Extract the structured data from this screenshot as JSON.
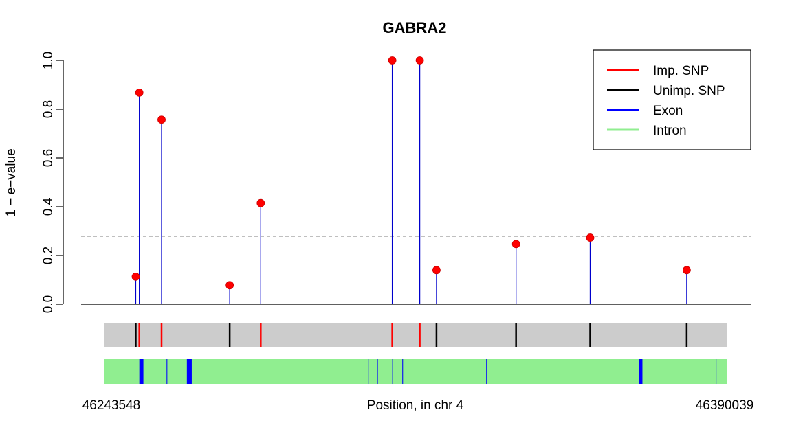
{
  "chart_data": {
    "type": "scatter",
    "title": "GABRA2",
    "ylabel": "1 − e−value",
    "xlabel": "Position, in chr 4",
    "xrange_labels": [
      "46243548",
      "46390039"
    ],
    "ylim": [
      0,
      1
    ],
    "yticks": [
      "0.0",
      "0.2",
      "0.4",
      "0.6",
      "0.8",
      "1.0"
    ],
    "threshold": 0.28,
    "x_start": 46243548,
    "x_end": 46390039,
    "snps": [
      {
        "pos": 46250898,
        "value": 0.113,
        "imputed": false
      },
      {
        "pos": 46251741,
        "value": 0.868,
        "imputed": true
      },
      {
        "pos": 46256971,
        "value": 0.757,
        "imputed": true
      },
      {
        "pos": 46272999,
        "value": 0.078,
        "imputed": false
      },
      {
        "pos": 46280302,
        "value": 0.415,
        "imputed": true
      },
      {
        "pos": 46311232,
        "value": 1.0,
        "imputed": true
      },
      {
        "pos": 46317698,
        "value": 1.0,
        "imputed": true
      },
      {
        "pos": 46321632,
        "value": 0.14,
        "imputed": false
      },
      {
        "pos": 46340345,
        "value": 0.247,
        "imputed": false
      },
      {
        "pos": 46357779,
        "value": 0.273,
        "imputed": false
      },
      {
        "pos": 46380479,
        "value": 0.14,
        "imputed": false
      }
    ],
    "exons": [
      {
        "start": 46251741,
        "end": 46252697
      },
      {
        "start": 46258149,
        "end": 46258319
      },
      {
        "start": 46262925,
        "end": 46264073
      },
      {
        "start": 46305501,
        "end": 46305671
      },
      {
        "start": 46307664,
        "end": 46307834
      },
      {
        "start": 46311232,
        "end": 46311402
      },
      {
        "start": 46313593,
        "end": 46313763
      },
      {
        "start": 46333321,
        "end": 46333491
      },
      {
        "start": 46369307,
        "end": 46370066
      },
      {
        "start": 46387304,
        "end": 46387474
      }
    ],
    "legend": {
      "placement": "top-right",
      "entries": [
        {
          "label": "Imp. SNP",
          "color": "#ff0000"
        },
        {
          "label": "Unimp. SNP",
          "color": "#000000"
        },
        {
          "label": "Exon",
          "color": "#0000ff"
        },
        {
          "label": "Intron",
          "color": "#90ee90"
        }
      ]
    },
    "colors": {
      "point": "#ff0000",
      "stem": "#0000cc",
      "snp_track": "#cccccc",
      "gene_track": "#90ee90",
      "exon": "#0000ff",
      "imputed": "#ff0000",
      "unimputed": "#000000"
    }
  }
}
